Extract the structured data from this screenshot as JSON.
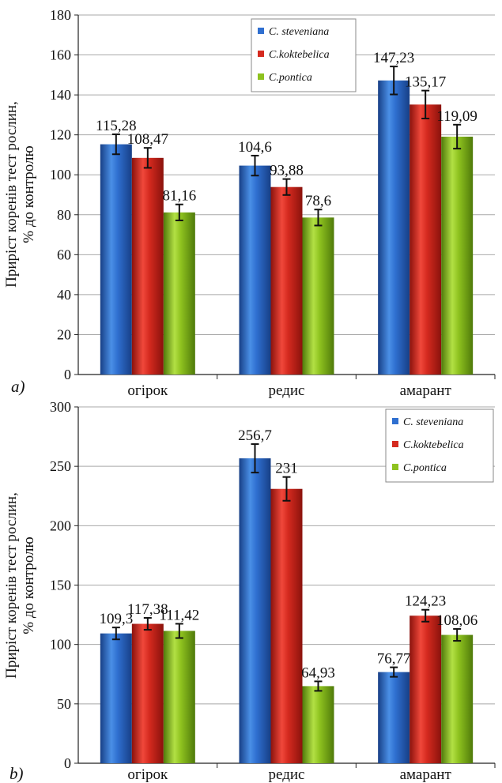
{
  "chart_data": [
    {
      "type": "bar",
      "panel_label": "a)",
      "ylabel": [
        "Приріст коренів тест рослин,",
        "% до контролю"
      ],
      "ylim": [
        0,
        180
      ],
      "yticks": [
        0,
        20,
        40,
        60,
        80,
        100,
        120,
        140,
        160,
        180
      ],
      "grid": true,
      "legend_position": "top-center",
      "categories": [
        "огірок",
        "редис",
        "амарант"
      ],
      "series": [
        {
          "name": "C. steveniana",
          "color": "#2f6fd0",
          "values": [
            115.28,
            104.6,
            147.23
          ],
          "labels": [
            "115,28",
            "104,6",
            "147,23"
          ],
          "errors": [
            5,
            5,
            7
          ]
        },
        {
          "name": "C.koktebelica",
          "color": "#d52a1f",
          "values": [
            108.47,
            93.88,
            135.17
          ],
          "labels": [
            "108,47",
            "93,88",
            "135,17"
          ],
          "errors": [
            5,
            4,
            7
          ]
        },
        {
          "name": "C.pontica",
          "color": "#8ec21f",
          "values": [
            81.16,
            78.6,
            119.09
          ],
          "labels": [
            "81,16",
            "78,6",
            "119,09"
          ],
          "errors": [
            4,
            4,
            6
          ]
        }
      ]
    },
    {
      "type": "bar",
      "panel_label": "b)",
      "ylabel": [
        "Приріст коренів тест рослин,",
        "% до контролю"
      ],
      "ylim": [
        0,
        300
      ],
      "yticks": [
        0,
        50,
        100,
        150,
        200,
        250,
        300
      ],
      "grid": true,
      "legend_position": "top-right",
      "categories": [
        "огірок",
        "редис",
        "амарант"
      ],
      "series": [
        {
          "name": "C. steveniana",
          "color": "#2f6fd0",
          "values": [
            109.3,
            256.7,
            76.77
          ],
          "labels": [
            "109,3",
            "256,7",
            "76,77"
          ],
          "errors": [
            5,
            12,
            4
          ]
        },
        {
          "name": "C.koktebelica",
          "color": "#d52a1f",
          "values": [
            117.38,
            231,
            124.23
          ],
          "labels": [
            "117,38",
            "231",
            "124,23"
          ],
          "errors": [
            5,
            10,
            5
          ]
        },
        {
          "name": "C.pontica",
          "color": "#8ec21f",
          "values": [
            111.42,
            64.93,
            108.06
          ],
          "labels": [
            "111,42",
            "64,93",
            "108,06"
          ],
          "errors": [
            6,
            4,
            5
          ]
        }
      ]
    }
  ]
}
